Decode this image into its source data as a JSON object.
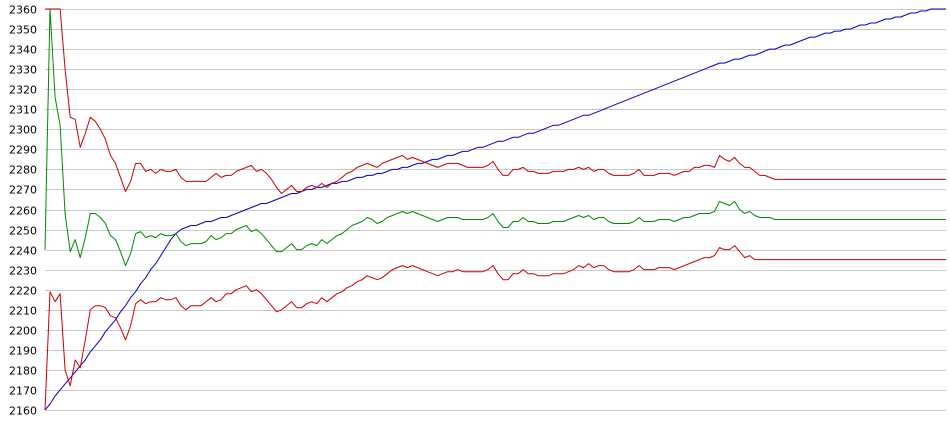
{
  "chart_data": {
    "type": "line",
    "grid": true,
    "ylim": [
      2160,
      2360
    ],
    "yticks": [
      "2360",
      "2350",
      "2340",
      "2330",
      "2320",
      "2310",
      "2300",
      "2290",
      "2280",
      "2270",
      "2260",
      "2250",
      "2240",
      "2230",
      "2220",
      "2210",
      "2200",
      "2190",
      "2180",
      "2170",
      "2160"
    ],
    "x": [
      0,
      1,
      2,
      3,
      4,
      5,
      6,
      7,
      8,
      9,
      10,
      11,
      12,
      13,
      14,
      15,
      16,
      17,
      18,
      19,
      20,
      21,
      22,
      23,
      24,
      25,
      26,
      27,
      28,
      29,
      30,
      31,
      32,
      33,
      34,
      35,
      36,
      37,
      38,
      39,
      40,
      41,
      42,
      43,
      44,
      45,
      46,
      47,
      48,
      49,
      50,
      51,
      52,
      53,
      54,
      55,
      56,
      57,
      58,
      59,
      60,
      61,
      62,
      63,
      64,
      65,
      66,
      67,
      68,
      69,
      70,
      71,
      72,
      73,
      74,
      75,
      76,
      77,
      78,
      79,
      80,
      81,
      82,
      83,
      84,
      85,
      86,
      87,
      88,
      89,
      90,
      91,
      92,
      93,
      94,
      95,
      96,
      97,
      98,
      99,
      100,
      101,
      102,
      103,
      104,
      105,
      106,
      107,
      108,
      109,
      110,
      111,
      112,
      113,
      114,
      115,
      116,
      117,
      118,
      119,
      120,
      121,
      122,
      123,
      124,
      125,
      126,
      127,
      128,
      129,
      130,
      131,
      132,
      133,
      134,
      135,
      136,
      137,
      138,
      139,
      140,
      141,
      142,
      143,
      144,
      145,
      146,
      147,
      148,
      149,
      150,
      151,
      152,
      153,
      154,
      155,
      156,
      157,
      158,
      159,
      160,
      161,
      162,
      163,
      164,
      165,
      166,
      167,
      168,
      169,
      170,
      171,
      172,
      173,
      174,
      175,
      176,
      177,
      178,
      179
    ],
    "series": [
      {
        "color": "#0000cc",
        "values": [
          2160,
          2163,
          2167,
          2170,
          2173,
          2176,
          2179,
          2182,
          2185,
          2189,
          2192,
          2195,
          2199,
          2202,
          2205,
          2209,
          2212,
          2216,
          2219,
          2223,
          2226,
          2230,
          2233,
          2237,
          2241,
          2245,
          2248,
          2250,
          2251,
          2252,
          2252,
          2253,
          2254,
          2254,
          2255,
          2256,
          2256,
          2257,
          2258,
          2259,
          2260,
          2261,
          2262,
          2263,
          2263,
          2264,
          2265,
          2266,
          2267,
          2268,
          2268,
          2269,
          2270,
          2270,
          2271,
          2271,
          2272,
          2273,
          2273,
          2274,
          2274,
          2275,
          2276,
          2276,
          2277,
          2277,
          2278,
          2278,
          2279,
          2280,
          2280,
          2281,
          2281,
          2282,
          2283,
          2283,
          2284,
          2285,
          2285,
          2286,
          2287,
          2287,
          2288,
          2289,
          2289,
          2290,
          2291,
          2291,
          2292,
          2293,
          2294,
          2294,
          2295,
          2296,
          2296,
          2297,
          2298,
          2298,
          2299,
          2300,
          2301,
          2302,
          2302,
          2303,
          2304,
          2305,
          2306,
          2307,
          2307,
          2308,
          2309,
          2310,
          2311,
          2312,
          2313,
          2314,
          2315,
          2316,
          2317,
          2318,
          2319,
          2320,
          2321,
          2322,
          2323,
          2324,
          2325,
          2326,
          2327,
          2328,
          2329,
          2330,
          2331,
          2332,
          2333,
          2333,
          2334,
          2335,
          2335,
          2336,
          2337,
          2337,
          2338,
          2339,
          2340,
          2340,
          2341,
          2342,
          2342,
          2343,
          2344,
          2345,
          2346,
          2346,
          2347,
          2348,
          2348,
          2349,
          2349,
          2350,
          2350,
          2351,
          2352,
          2352,
          2353,
          2353,
          2354,
          2355,
          2355,
          2356,
          2356,
          2357,
          2358,
          2358,
          2359,
          2359,
          2360,
          2360,
          2360,
          2360
        ]
      },
      {
        "color": "#008800",
        "values": [
          2240,
          2360,
          2316,
          2302,
          2258,
          2239,
          2245,
          2236,
          2246,
          2258,
          2258,
          2256,
          2253,
          2247,
          2245,
          2239,
          2232,
          2238,
          2248,
          2249,
          2246,
          2247,
          2246,
          2248,
          2247,
          2247,
          2248,
          2244,
          2242,
          2243,
          2243,
          2243,
          2244,
          2247,
          2245,
          2246,
          2248,
          2248,
          2250,
          2251,
          2252,
          2249,
          2250,
          2248,
          2245,
          2242,
          2239,
          2239,
          2241,
          2243,
          2240,
          2240,
          2242,
          2243,
          2242,
          2245,
          2243,
          2245,
          2247,
          2248,
          2250,
          2252,
          2253,
          2254,
          2256,
          2255,
          2253,
          2254,
          2256,
          2257,
          2258,
          2259,
          2258,
          2259,
          2258,
          2257,
          2256,
          2255,
          2254,
          2255,
          2256,
          2256,
          2256,
          2255,
          2255,
          2255,
          2255,
          2255,
          2256,
          2258,
          2254,
          2251,
          2251,
          2254,
          2254,
          2256,
          2254,
          2254,
          2253,
          2253,
          2253,
          2254,
          2254,
          2254,
          2255,
          2256,
          2257,
          2256,
          2257,
          2255,
          2256,
          2256,
          2254,
          2253,
          2253,
          2253,
          2253,
          2254,
          2256,
          2254,
          2254,
          2254,
          2255,
          2255,
          2255,
          2254,
          2255,
          2256,
          2256,
          2257,
          2258,
          2258,
          2258,
          2259,
          2264,
          2263,
          2262,
          2264,
          2260,
          2258,
          2259,
          2257,
          2256,
          2256,
          2256,
          2255,
          2255,
          2255,
          2255,
          2255,
          2255,
          2255,
          2255,
          2255,
          2255,
          2255,
          2255,
          2255,
          2255,
          2255,
          2255,
          2255,
          2255,
          2255,
          2255,
          2255,
          2255,
          2255,
          2255,
          2255,
          2255,
          2255,
          2255,
          2255,
          2255,
          2255,
          2255,
          2255,
          2255,
          2255
        ]
      },
      {
        "color": "#cc0000",
        "values": [
          2360,
          2360,
          2360,
          2360,
          2330,
          2306,
          2305,
          2291,
          2298,
          2306,
          2304,
          2300,
          2295,
          2287,
          2283,
          2276,
          2269,
          2274,
          2283,
          2283,
          2279,
          2280,
          2278,
          2280,
          2279,
          2279,
          2280,
          2276,
          2274,
          2274,
          2274,
          2274,
          2274,
          2276,
          2278,
          2276,
          2277,
          2277,
          2279,
          2280,
          2281,
          2282,
          2279,
          2280,
          2278,
          2275,
          2271,
          2268,
          2270,
          2272,
          2269,
          2269,
          2271,
          2272,
          2271,
          2273,
          2271,
          2273,
          2274,
          2276,
          2278,
          2279,
          2281,
          2282,
          2283,
          2282,
          2281,
          2283,
          2284,
          2285,
          2286,
          2287,
          2285,
          2286,
          2285,
          2284,
          2283,
          2282,
          2281,
          2282,
          2283,
          2283,
          2283,
          2282,
          2281,
          2281,
          2281,
          2281,
          2282,
          2284,
          2280,
          2277,
          2277,
          2280,
          2280,
          2281,
          2279,
          2279,
          2278,
          2278,
          2278,
          2279,
          2279,
          2279,
          2280,
          2280,
          2281,
          2280,
          2281,
          2279,
          2280,
          2280,
          2278,
          2277,
          2277,
          2277,
          2277,
          2278,
          2280,
          2277,
          2277,
          2277,
          2278,
          2278,
          2278,
          2277,
          2278,
          2279,
          2279,
          2281,
          2281,
          2282,
          2282,
          2281,
          2287,
          2285,
          2284,
          2286,
          2283,
          2281,
          2281,
          2279,
          2277,
          2277,
          2276,
          2275,
          2275,
          2275,
          2275,
          2275,
          2275,
          2275,
          2275,
          2275,
          2275,
          2275,
          2275,
          2275,
          2275,
          2275,
          2275,
          2275,
          2275,
          2275,
          2275,
          2275,
          2275,
          2275,
          2275,
          2275,
          2275,
          2275,
          2275,
          2275,
          2275,
          2275,
          2275,
          2275,
          2275,
          2275
        ]
      },
      {
        "color": "#cc0000",
        "values": [
          2160,
          2219,
          2214,
          2218,
          2180,
          2172,
          2185,
          2181,
          2195,
          2210,
          2212,
          2212,
          2211,
          2207,
          2206,
          2201,
          2195,
          2202,
          2213,
          2215,
          2213,
          2214,
          2214,
          2216,
          2215,
          2215,
          2216,
          2212,
          2210,
          2212,
          2212,
          2212,
          2214,
          2216,
          2214,
          2215,
          2218,
          2218,
          2220,
          2221,
          2222,
          2219,
          2220,
          2218,
          2215,
          2212,
          2209,
          2210,
          2212,
          2214,
          2211,
          2211,
          2213,
          2214,
          2213,
          2216,
          2214,
          2216,
          2218,
          2219,
          2221,
          2222,
          2224,
          2225,
          2227,
          2226,
          2225,
          2226,
          2228,
          2230,
          2231,
          2232,
          2231,
          2232,
          2231,
          2230,
          2229,
          2228,
          2227,
          2228,
          2229,
          2229,
          2230,
          2229,
          2229,
          2229,
          2229,
          2229,
          2230,
          2232,
          2228,
          2225,
          2225,
          2228,
          2228,
          2230,
          2228,
          2228,
          2227,
          2227,
          2227,
          2228,
          2228,
          2228,
          2229,
          2230,
          2232,
          2231,
          2233,
          2231,
          2232,
          2232,
          2230,
          2229,
          2229,
          2229,
          2229,
          2230,
          2232,
          2230,
          2230,
          2230,
          2231,
          2231,
          2231,
          2230,
          2231,
          2232,
          2233,
          2234,
          2235,
          2236,
          2236,
          2237,
          2241,
          2240,
          2240,
          2242,
          2239,
          2236,
          2237,
          2235,
          2235,
          2235,
          2235,
          2235,
          2235,
          2235,
          2235,
          2235,
          2235,
          2235,
          2235,
          2235,
          2235,
          2235,
          2235,
          2235,
          2235,
          2235,
          2235,
          2235,
          2235,
          2235,
          2235,
          2235,
          2235,
          2235,
          2235,
          2235,
          2235,
          2235,
          2235,
          2235,
          2235,
          2235,
          2235,
          2235,
          2235,
          2235
        ]
      }
    ]
  }
}
